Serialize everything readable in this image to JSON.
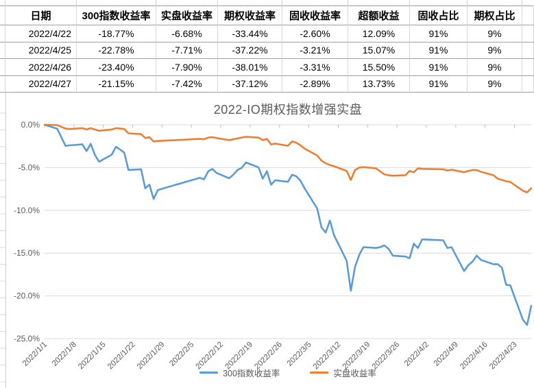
{
  "table": {
    "headers": [
      "日期",
      "300指数收益率",
      "实盘收益率",
      "期权收益率",
      "固收收益率",
      "超额收益",
      "固收占比",
      "期权占比"
    ],
    "rows": [
      [
        "2022/4/22",
        "-18.77%",
        "-6.68%",
        "-33.44%",
        "-2.60%",
        "12.09%",
        "91%",
        "9%"
      ],
      [
        "2022/4/25",
        "-22.78%",
        "-7.71%",
        "-37.22%",
        "-3.21%",
        "15.07%",
        "91%",
        "9%"
      ],
      [
        "2022/4/26",
        "-23.40%",
        "-7.90%",
        "-38.01%",
        "-3.31%",
        "15.50%",
        "91%",
        "9%"
      ],
      [
        "2022/4/27",
        "-21.15%",
        "-7.42%",
        "-37.12%",
        "-2.89%",
        "13.73%",
        "91%",
        "9%"
      ]
    ]
  },
  "chart_data": {
    "type": "line",
    "title": "2022-IO期权指数增强实盘",
    "y_ticks": [
      "0.0%",
      "-5.0%",
      "-10.0%",
      "-15.0%",
      "-20.0%",
      "-25.0%"
    ],
    "ylim": [
      -25,
      0
    ],
    "grid": true,
    "legend_position": "bottom",
    "x_labels": [
      "2022/1/1",
      "2022/1/8",
      "2022/1/15",
      "2022/1/22",
      "2022/1/29",
      "2022/2/5",
      "2022/2/12",
      "2022/2/19",
      "2022/2/26",
      "2022/3/5",
      "2022/3/12",
      "2022/3/19",
      "2022/3/26",
      "2022/4/2",
      "2022/4/9",
      "2022/4/16",
      "2022/4/23"
    ],
    "x_domain_days": 116,
    "dates": [
      "2022/1/1",
      "2022/1/4",
      "2022/1/5",
      "2022/1/6",
      "2022/1/7",
      "2022/1/10",
      "2022/1/11",
      "2022/1/12",
      "2022/1/13",
      "2022/1/14",
      "2022/1/17",
      "2022/1/18",
      "2022/1/19",
      "2022/1/20",
      "2022/1/21",
      "2022/1/24",
      "2022/1/25",
      "2022/1/26",
      "2022/1/27",
      "2022/1/28",
      "2022/2/7",
      "2022/2/8",
      "2022/2/9",
      "2022/2/10",
      "2022/2/11",
      "2022/2/14",
      "2022/2/15",
      "2022/2/16",
      "2022/2/17",
      "2022/2/18",
      "2022/2/21",
      "2022/2/22",
      "2022/2/23",
      "2022/2/24",
      "2022/2/25",
      "2022/2/28",
      "2022/3/1",
      "2022/3/2",
      "2022/3/3",
      "2022/3/4",
      "2022/3/7",
      "2022/3/8",
      "2022/3/9",
      "2022/3/10",
      "2022/3/11",
      "2022/3/14",
      "2022/3/15",
      "2022/3/16",
      "2022/3/17",
      "2022/3/18",
      "2022/3/21",
      "2022/3/22",
      "2022/3/23",
      "2022/3/24",
      "2022/3/25",
      "2022/3/28",
      "2022/3/29",
      "2022/3/30",
      "2022/3/31",
      "2022/4/1",
      "2022/4/6",
      "2022/4/7",
      "2022/4/8",
      "2022/4/11",
      "2022/4/12",
      "2022/4/13",
      "2022/4/14",
      "2022/4/15",
      "2022/4/18",
      "2022/4/19",
      "2022/4/20",
      "2022/4/21",
      "2022/4/22",
      "2022/4/25",
      "2022/4/26",
      "2022/4/27"
    ],
    "day_index": [
      0,
      3,
      4,
      5,
      6,
      9,
      10,
      11,
      12,
      13,
      16,
      17,
      18,
      19,
      20,
      23,
      24,
      25,
      26,
      27,
      37,
      38,
      39,
      40,
      41,
      44,
      45,
      46,
      47,
      48,
      51,
      52,
      53,
      54,
      55,
      58,
      59,
      60,
      61,
      62,
      65,
      66,
      67,
      68,
      69,
      72,
      73,
      74,
      75,
      76,
      79,
      80,
      81,
      82,
      83,
      86,
      87,
      88,
      89,
      90,
      95,
      96,
      97,
      100,
      101,
      102,
      103,
      104,
      107,
      108,
      109,
      110,
      111,
      114,
      115,
      116
    ],
    "series": [
      {
        "name": "300指数收益率",
        "color": "#5B9BD5",
        "values": [
          0.0,
          -0.46,
          -1.46,
          -2.47,
          -2.4,
          -2.29,
          -3.08,
          -2.23,
          -3.52,
          -4.32,
          -3.5,
          -2.57,
          -2.9,
          -3.26,
          -5.28,
          -5.2,
          -7.43,
          -7.0,
          -8.68,
          -7.62,
          -6.2,
          -6.38,
          -5.45,
          -5.16,
          -5.63,
          -6.25,
          -5.83,
          -5.27,
          -5.03,
          -4.41,
          -4.98,
          -6.3,
          -5.43,
          -7.01,
          -6.48,
          -6.67,
          -5.84,
          -6.02,
          -6.55,
          -7.44,
          -9.8,
          -12.0,
          -12.6,
          -11.2,
          -12.9,
          -15.9,
          -19.4,
          -16.6,
          -15.2,
          -14.3,
          -14.4,
          -14.3,
          -14.1,
          -14.5,
          -15.3,
          -15.4,
          -15.6,
          -13.9,
          -14.4,
          -13.4,
          -13.5,
          -14.4,
          -14.3,
          -17.1,
          -16.4,
          -16.0,
          -15.3,
          -15.8,
          -16.3,
          -16.3,
          -16.7,
          -18.7,
          -18.77,
          -22.78,
          -23.4,
          -21.15
        ]
      },
      {
        "name": "实盘收益率",
        "color": "#ED7D31",
        "values": [
          0.0,
          -0.05,
          -0.25,
          -0.45,
          -0.5,
          -0.4,
          -0.55,
          -0.4,
          -0.55,
          -0.7,
          -0.55,
          -0.4,
          -0.45,
          -0.5,
          -1.0,
          -1.1,
          -1.55,
          -1.45,
          -1.95,
          -1.9,
          -1.65,
          -1.7,
          -1.5,
          -1.45,
          -1.55,
          -1.8,
          -1.7,
          -1.6,
          -1.5,
          -1.4,
          -1.5,
          -1.8,
          -1.65,
          -2.3,
          -2.2,
          -2.45,
          -1.95,
          -2.1,
          -2.4,
          -2.8,
          -3.6,
          -4.2,
          -4.5,
          -4.7,
          -4.85,
          -5.4,
          -6.45,
          -5.3,
          -5.0,
          -4.95,
          -5.1,
          -5.45,
          -5.8,
          -5.9,
          -5.95,
          -5.9,
          -5.4,
          -5.55,
          -5.1,
          -5.15,
          -5.2,
          -5.35,
          -5.25,
          -5.55,
          -5.4,
          -5.3,
          -5.3,
          -5.5,
          -5.9,
          -6.3,
          -6.45,
          -6.6,
          -6.68,
          -7.71,
          -7.9,
          -7.42
        ]
      }
    ]
  }
}
